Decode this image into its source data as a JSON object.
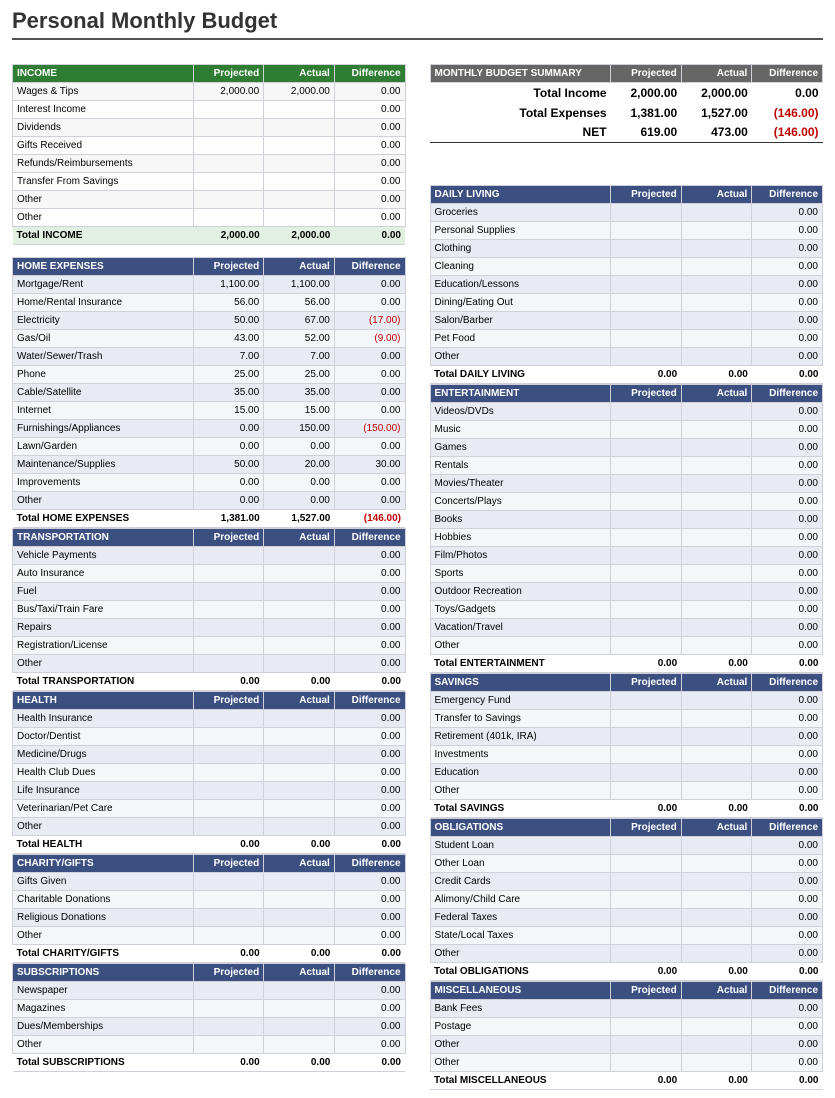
{
  "title": "Personal Monthly Budget",
  "headers": {
    "projected": "Projected",
    "actual": "Actual",
    "difference": "Difference"
  },
  "summary": {
    "heading": "MONTHLY BUDGET SUMMARY",
    "rows": [
      {
        "label": "Total Income",
        "p": "2,000.00",
        "a": "2,000.00",
        "d": "0.00",
        "neg": false
      },
      {
        "label": "Total Expenses",
        "p": "1,381.00",
        "a": "1,527.00",
        "d": "(146.00)",
        "neg": true
      },
      {
        "label": "NET",
        "p": "619.00",
        "a": "473.00",
        "d": "(146.00)",
        "neg": true
      }
    ]
  },
  "left": [
    {
      "name": "INCOME",
      "style": "green",
      "total_label": "Total INCOME",
      "rows": [
        {
          "l": "Wages & Tips",
          "p": "2,000.00",
          "a": "2,000.00",
          "d": "0.00"
        },
        {
          "l": "Interest Income",
          "p": "",
          "a": "",
          "d": "0.00"
        },
        {
          "l": "Dividends",
          "p": "",
          "a": "",
          "d": "0.00"
        },
        {
          "l": "Gifts Received",
          "p": "",
          "a": "",
          "d": "0.00"
        },
        {
          "l": "Refunds/Reimbursements",
          "p": "",
          "a": "",
          "d": "0.00"
        },
        {
          "l": "Transfer From Savings",
          "p": "",
          "a": "",
          "d": "0.00"
        },
        {
          "l": "Other",
          "p": "",
          "a": "",
          "d": "0.00"
        },
        {
          "l": "Other",
          "p": "",
          "a": "",
          "d": "0.00"
        }
      ],
      "totals": {
        "p": "2,000.00",
        "a": "2,000.00",
        "d": "0.00"
      }
    },
    {
      "name": "HOME EXPENSES",
      "style": "blue",
      "total_label": "Total HOME EXPENSES",
      "rows": [
        {
          "l": "Mortgage/Rent",
          "p": "1,100.00",
          "a": "1,100.00",
          "d": "0.00"
        },
        {
          "l": "Home/Rental Insurance",
          "p": "56.00",
          "a": "56.00",
          "d": "0.00"
        },
        {
          "l": "Electricity",
          "p": "50.00",
          "a": "67.00",
          "d": "(17.00)",
          "neg": true
        },
        {
          "l": "Gas/Oil",
          "p": "43.00",
          "a": "52.00",
          "d": "(9.00)",
          "neg": true
        },
        {
          "l": "Water/Sewer/Trash",
          "p": "7.00",
          "a": "7.00",
          "d": "0.00"
        },
        {
          "l": "Phone",
          "p": "25.00",
          "a": "25.00",
          "d": "0.00"
        },
        {
          "l": "Cable/Satellite",
          "p": "35.00",
          "a": "35.00",
          "d": "0.00"
        },
        {
          "l": "Internet",
          "p": "15.00",
          "a": "15.00",
          "d": "0.00"
        },
        {
          "l": "Furnishings/Appliances",
          "p": "0.00",
          "a": "150.00",
          "d": "(150.00)",
          "neg": true
        },
        {
          "l": "Lawn/Garden",
          "p": "0.00",
          "a": "0.00",
          "d": "0.00"
        },
        {
          "l": "Maintenance/Supplies",
          "p": "50.00",
          "a": "20.00",
          "d": "30.00"
        },
        {
          "l": "Improvements",
          "p": "0.00",
          "a": "0.00",
          "d": "0.00"
        },
        {
          "l": "Other",
          "p": "0.00",
          "a": "0.00",
          "d": "0.00"
        }
      ],
      "totals": {
        "p": "1,381.00",
        "a": "1,527.00",
        "d": "(146.00)",
        "neg": true
      }
    },
    {
      "name": "TRANSPORTATION",
      "style": "blue",
      "total_label": "Total TRANSPORTATION",
      "rows": [
        {
          "l": "Vehicle Payments",
          "p": "",
          "a": "",
          "d": "0.00"
        },
        {
          "l": "Auto Insurance",
          "p": "",
          "a": "",
          "d": "0.00"
        },
        {
          "l": "Fuel",
          "p": "",
          "a": "",
          "d": "0.00"
        },
        {
          "l": "Bus/Taxi/Train Fare",
          "p": "",
          "a": "",
          "d": "0.00"
        },
        {
          "l": "Repairs",
          "p": "",
          "a": "",
          "d": "0.00"
        },
        {
          "l": "Registration/License",
          "p": "",
          "a": "",
          "d": "0.00"
        },
        {
          "l": "Other",
          "p": "",
          "a": "",
          "d": "0.00"
        }
      ],
      "totals": {
        "p": "0.00",
        "a": "0.00",
        "d": "0.00"
      }
    },
    {
      "name": "HEALTH",
      "style": "blue",
      "total_label": "Total HEALTH",
      "rows": [
        {
          "l": "Health Insurance",
          "p": "",
          "a": "",
          "d": "0.00"
        },
        {
          "l": "Doctor/Dentist",
          "p": "",
          "a": "",
          "d": "0.00"
        },
        {
          "l": "Medicine/Drugs",
          "p": "",
          "a": "",
          "d": "0.00"
        },
        {
          "l": "Health Club Dues",
          "p": "",
          "a": "",
          "d": "0.00"
        },
        {
          "l": "Life Insurance",
          "p": "",
          "a": "",
          "d": "0.00"
        },
        {
          "l": "Veterinarian/Pet Care",
          "p": "",
          "a": "",
          "d": "0.00"
        },
        {
          "l": "Other",
          "p": "",
          "a": "",
          "d": "0.00"
        }
      ],
      "totals": {
        "p": "0.00",
        "a": "0.00",
        "d": "0.00"
      }
    },
    {
      "name": "CHARITY/GIFTS",
      "style": "blue",
      "total_label": "Total CHARITY/GIFTS",
      "rows": [
        {
          "l": "Gifts Given",
          "p": "",
          "a": "",
          "d": "0.00"
        },
        {
          "l": "Charitable Donations",
          "p": "",
          "a": "",
          "d": "0.00"
        },
        {
          "l": "Religious Donations",
          "p": "",
          "a": "",
          "d": "0.00"
        },
        {
          "l": "Other",
          "p": "",
          "a": "",
          "d": "0.00"
        }
      ],
      "totals": {
        "p": "0.00",
        "a": "0.00",
        "d": "0.00"
      }
    },
    {
      "name": "SUBSCRIPTIONS",
      "style": "blue",
      "total_label": "Total SUBSCRIPTIONS",
      "rows": [
        {
          "l": "Newspaper",
          "p": "",
          "a": "",
          "d": "0.00"
        },
        {
          "l": "Magazines",
          "p": "",
          "a": "",
          "d": "0.00"
        },
        {
          "l": "Dues/Memberships",
          "p": "",
          "a": "",
          "d": "0.00"
        },
        {
          "l": "Other",
          "p": "",
          "a": "",
          "d": "0.00"
        }
      ],
      "totals": {
        "p": "0.00",
        "a": "0.00",
        "d": "0.00"
      }
    }
  ],
  "right": [
    {
      "name": "DAILY LIVING",
      "style": "blue",
      "total_label": "Total DAILY LIVING",
      "rows": [
        {
          "l": "Groceries",
          "p": "",
          "a": "",
          "d": "0.00"
        },
        {
          "l": "Personal Supplies",
          "p": "",
          "a": "",
          "d": "0.00"
        },
        {
          "l": "Clothing",
          "p": "",
          "a": "",
          "d": "0.00"
        },
        {
          "l": "Cleaning",
          "p": "",
          "a": "",
          "d": "0.00"
        },
        {
          "l": "Education/Lessons",
          "p": "",
          "a": "",
          "d": "0.00"
        },
        {
          "l": "Dining/Eating Out",
          "p": "",
          "a": "",
          "d": "0.00"
        },
        {
          "l": "Salon/Barber",
          "p": "",
          "a": "",
          "d": "0.00"
        },
        {
          "l": "Pet Food",
          "p": "",
          "a": "",
          "d": "0.00"
        },
        {
          "l": "Other",
          "p": "",
          "a": "",
          "d": "0.00"
        }
      ],
      "totals": {
        "p": "0.00",
        "a": "0.00",
        "d": "0.00"
      }
    },
    {
      "name": "ENTERTAINMENT",
      "style": "blue",
      "total_label": "Total ENTERTAINMENT",
      "rows": [
        {
          "l": "Videos/DVDs",
          "p": "",
          "a": "",
          "d": "0.00"
        },
        {
          "l": "Music",
          "p": "",
          "a": "",
          "d": "0.00"
        },
        {
          "l": "Games",
          "p": "",
          "a": "",
          "d": "0.00"
        },
        {
          "l": "Rentals",
          "p": "",
          "a": "",
          "d": "0.00"
        },
        {
          "l": "Movies/Theater",
          "p": "",
          "a": "",
          "d": "0.00"
        },
        {
          "l": "Concerts/Plays",
          "p": "",
          "a": "",
          "d": "0.00"
        },
        {
          "l": "Books",
          "p": "",
          "a": "",
          "d": "0.00"
        },
        {
          "l": "Hobbies",
          "p": "",
          "a": "",
          "d": "0.00"
        },
        {
          "l": "Film/Photos",
          "p": "",
          "a": "",
          "d": "0.00"
        },
        {
          "l": "Sports",
          "p": "",
          "a": "",
          "d": "0.00"
        },
        {
          "l": "Outdoor Recreation",
          "p": "",
          "a": "",
          "d": "0.00"
        },
        {
          "l": "Toys/Gadgets",
          "p": "",
          "a": "",
          "d": "0.00"
        },
        {
          "l": "Vacation/Travel",
          "p": "",
          "a": "",
          "d": "0.00"
        },
        {
          "l": "Other",
          "p": "",
          "a": "",
          "d": "0.00"
        }
      ],
      "totals": {
        "p": "0.00",
        "a": "0.00",
        "d": "0.00"
      }
    },
    {
      "name": "SAVINGS",
      "style": "blue",
      "total_label": "Total SAVINGS",
      "rows": [
        {
          "l": "Emergency Fund",
          "p": "",
          "a": "",
          "d": "0.00"
        },
        {
          "l": "Transfer to Savings",
          "p": "",
          "a": "",
          "d": "0.00"
        },
        {
          "l": "Retirement (401k, IRA)",
          "p": "",
          "a": "",
          "d": "0.00"
        },
        {
          "l": "Investments",
          "p": "",
          "a": "",
          "d": "0.00"
        },
        {
          "l": "Education",
          "p": "",
          "a": "",
          "d": "0.00"
        },
        {
          "l": "Other",
          "p": "",
          "a": "",
          "d": "0.00"
        }
      ],
      "totals": {
        "p": "0.00",
        "a": "0.00",
        "d": "0.00"
      }
    },
    {
      "name": "OBLIGATIONS",
      "style": "blue",
      "total_label": "Total OBLIGATIONS",
      "rows": [
        {
          "l": "Student Loan",
          "p": "",
          "a": "",
          "d": "0.00"
        },
        {
          "l": "Other Loan",
          "p": "",
          "a": "",
          "d": "0.00"
        },
        {
          "l": "Credit Cards",
          "p": "",
          "a": "",
          "d": "0.00"
        },
        {
          "l": "Alimony/Child Care",
          "p": "",
          "a": "",
          "d": "0.00"
        },
        {
          "l": "Federal Taxes",
          "p": "",
          "a": "",
          "d": "0.00"
        },
        {
          "l": "State/Local Taxes",
          "p": "",
          "a": "",
          "d": "0.00"
        },
        {
          "l": "Other",
          "p": "",
          "a": "",
          "d": "0.00"
        }
      ],
      "totals": {
        "p": "0.00",
        "a": "0.00",
        "d": "0.00"
      }
    },
    {
      "name": "MISCELLANEOUS",
      "style": "blue",
      "total_label": "Total MISCELLANEOUS",
      "rows": [
        {
          "l": "Bank Fees",
          "p": "",
          "a": "",
          "d": "0.00"
        },
        {
          "l": "Postage",
          "p": "",
          "a": "",
          "d": "0.00"
        },
        {
          "l": "Other",
          "p": "",
          "a": "",
          "d": "0.00"
        },
        {
          "l": "Other",
          "p": "",
          "a": "",
          "d": "0.00"
        }
      ],
      "totals": {
        "p": "0.00",
        "a": "0.00",
        "d": "0.00"
      }
    }
  ]
}
